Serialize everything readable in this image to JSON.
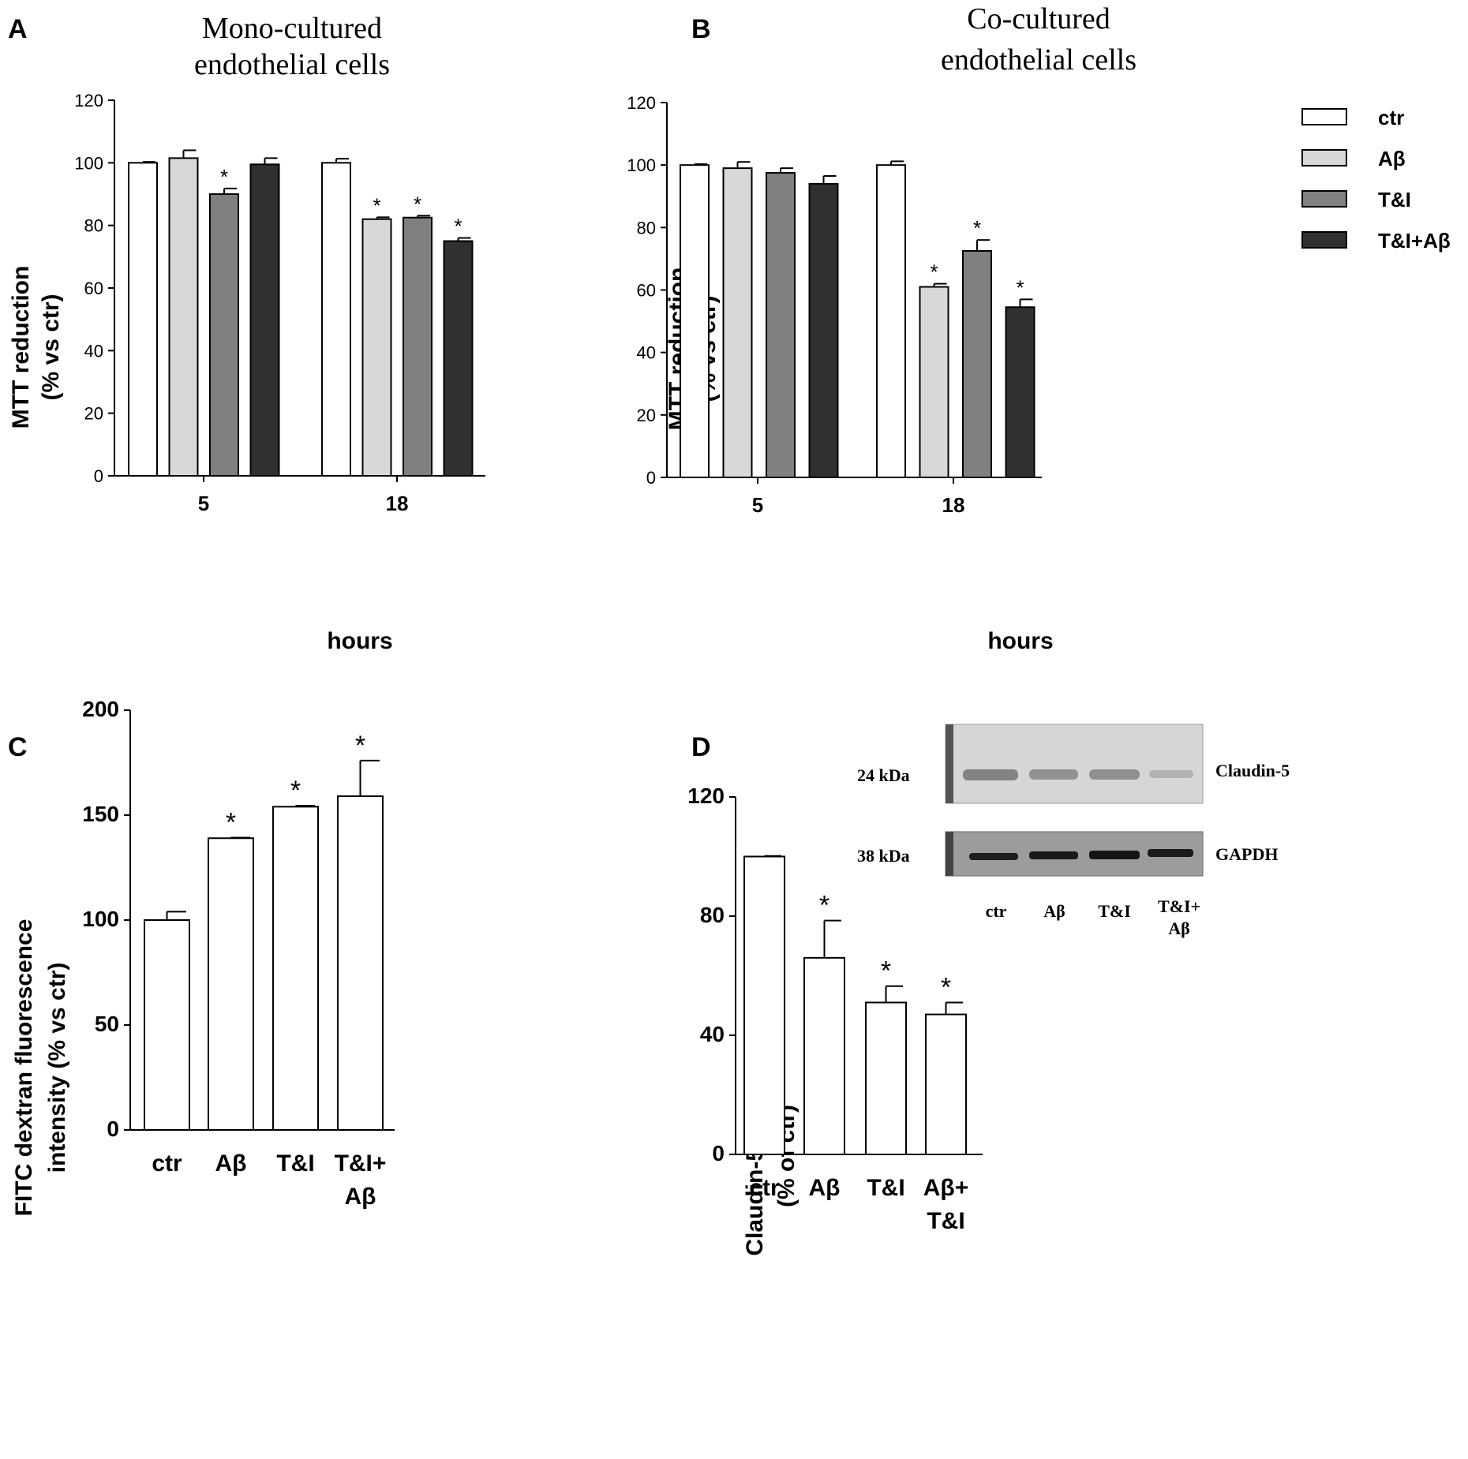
{
  "panels": {
    "A": "A",
    "B": "B",
    "C": "C",
    "D": "D"
  },
  "colors": {
    "ctr": "#ffffff",
    "abeta": "#d8d8d8",
    "ti": "#808080",
    "tiab": "#303030"
  },
  "legend": {
    "items": [
      "ctr",
      "Aβ",
      "T&I",
      "T&I+Aβ"
    ]
  },
  "blot": {
    "claudin_label": "Claudin-5",
    "gapdh_label": "GAPDH",
    "kda_top": "24 kDa",
    "kda_bottom": "38 kDa",
    "lanes": [
      "ctr",
      "Aβ",
      "T&I",
      "T&I+",
      "Aβ"
    ]
  },
  "chart_data": [
    {
      "id": "A",
      "type": "bar",
      "title": [
        "Mono-cultured",
        "endothelial cells"
      ],
      "xlabel": "hours",
      "ylabel": [
        "MTT reduction",
        "(% vs ctr)"
      ],
      "ylim": [
        0,
        120
      ],
      "yticks": [
        "0",
        "20",
        "40",
        "60",
        "80",
        "100",
        "120"
      ],
      "categories": [
        "5",
        "18"
      ],
      "series": [
        {
          "name": "ctr",
          "values": [
            100,
            100
          ],
          "errors": [
            0.3,
            1.3
          ],
          "sig": [
            false,
            false
          ]
        },
        {
          "name": "Aβ",
          "values": [
            101.5,
            82
          ],
          "errors": [
            2.5,
            0.6
          ],
          "sig": [
            false,
            true
          ]
        },
        {
          "name": "T&I",
          "values": [
            90,
            82.5
          ],
          "errors": [
            1.8,
            0.6
          ],
          "sig": [
            true,
            true
          ]
        },
        {
          "name": "T&I+Aβ",
          "values": [
            99.5,
            75
          ],
          "errors": [
            2,
            1
          ],
          "sig": [
            false,
            true
          ]
        }
      ]
    },
    {
      "id": "B",
      "type": "bar",
      "title": [
        "Co-cultured",
        "endothelial cells"
      ],
      "xlabel": "hours",
      "ylabel": [
        "MTT reduction",
        "(% vs ctr)"
      ],
      "ylim": [
        0,
        120
      ],
      "yticks": [
        "0",
        "20",
        "40",
        "60",
        "80",
        "100",
        "120"
      ],
      "categories": [
        "5",
        "18"
      ],
      "series": [
        {
          "name": "ctr",
          "values": [
            100,
            100
          ],
          "errors": [
            0.3,
            1.2
          ],
          "sig": [
            false,
            false
          ]
        },
        {
          "name": "Aβ",
          "values": [
            99,
            61
          ],
          "errors": [
            2,
            1
          ],
          "sig": [
            false,
            true
          ]
        },
        {
          "name": "T&I",
          "values": [
            97.5,
            72.5
          ],
          "errors": [
            1.5,
            3.5
          ],
          "sig": [
            false,
            true
          ]
        },
        {
          "name": "T&I+Aβ",
          "values": [
            94,
            54.5
          ],
          "errors": [
            2.5,
            2.5
          ],
          "sig": [
            false,
            true
          ]
        }
      ]
    },
    {
      "id": "C",
      "type": "bar",
      "xlabel": "",
      "ylabel": [
        "FITC dextran fluorescence",
        "intensity (% vs ctr)"
      ],
      "ylim": [
        0,
        200
      ],
      "yticks": [
        "0",
        "50",
        "100",
        "150",
        "200"
      ],
      "categories": [
        [
          "ctr"
        ],
        [
          "Aβ"
        ],
        [
          "T&I"
        ],
        [
          "T&I+",
          "Aβ"
        ]
      ],
      "values": [
        100,
        139,
        154,
        159
      ],
      "errors": [
        4,
        0.3,
        0.5,
        17
      ],
      "sig": [
        false,
        true,
        true,
        true
      ]
    },
    {
      "id": "D",
      "type": "bar",
      "xlabel": "",
      "ylabel": [
        "Claudin-5/GAPDH",
        "(% of ctr)"
      ],
      "ylim": [
        0,
        120
      ],
      "yticks": [
        "0",
        "40",
        "80",
        "120"
      ],
      "categories": [
        [
          "ctr"
        ],
        [
          "Aβ"
        ],
        [
          "T&I"
        ],
        [
          "Aβ+",
          "T&I"
        ]
      ],
      "values": [
        100,
        66,
        51,
        47
      ],
      "errors": [
        0.2,
        12.5,
        5.5,
        4
      ],
      "sig": [
        false,
        true,
        true,
        true
      ]
    }
  ],
  "sig_symbol": "*"
}
